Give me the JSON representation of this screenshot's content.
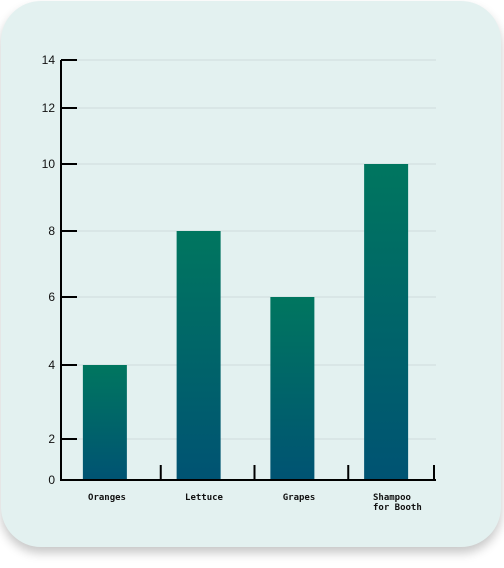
{
  "chart_data": {
    "type": "bar",
    "categories": [
      "Oranges",
      "Lettuce",
      "Grapes",
      "Shampoo for Booth"
    ],
    "category_lines": [
      [
        "Oranges"
      ],
      [
        "Lettuce"
      ],
      [
        "Grapes"
      ],
      [
        "Shampoo",
        "for Booth"
      ]
    ],
    "values": [
      4,
      8,
      6,
      10
    ],
    "yticks": [
      0,
      2,
      4,
      6,
      8,
      10,
      12,
      14
    ],
    "ylim": [
      0,
      14
    ],
    "title": "",
    "xlabel": "",
    "ylabel": "",
    "grid": true,
    "colors": {
      "bar_top": "#00765f",
      "bar_bottom": "#005373",
      "background": "#e3f1f0",
      "grid": "#cfdcdb",
      "axis": "#000000"
    }
  }
}
